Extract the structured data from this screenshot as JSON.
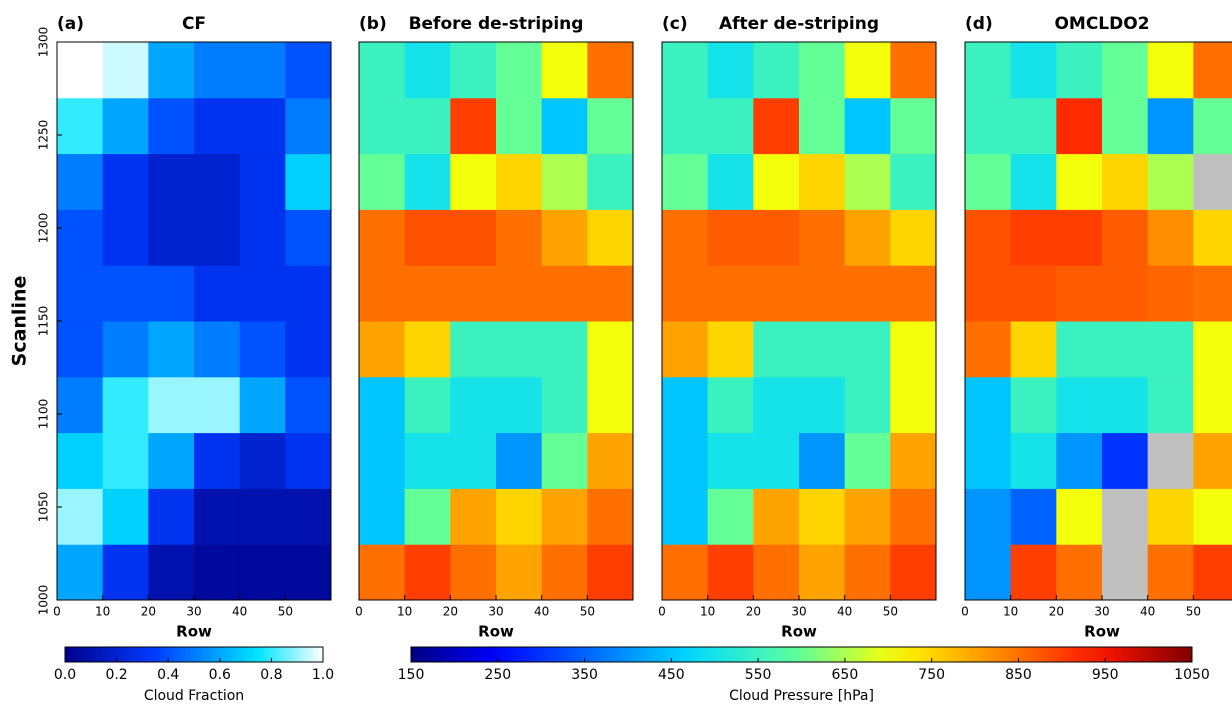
{
  "chart_data": [
    {
      "type": "heatmap",
      "panel_label": "(a)",
      "title": "CF",
      "xlabel": "Row",
      "ylabel": "Scanline",
      "xlim": [
        0,
        60
      ],
      "ylim": [
        1000,
        1300
      ],
      "xticks": [
        0,
        10,
        20,
        30,
        40,
        50
      ],
      "yticks": [
        1000,
        1050,
        1100,
        1150,
        1200,
        1250,
        1300
      ],
      "x_bins": [
        0,
        10,
        20,
        30,
        40,
        50,
        60
      ],
      "y_bins": [
        1000,
        1030,
        1060,
        1090,
        1120,
        1150,
        1180,
        1210,
        1240,
        1270,
        1300
      ],
      "values": [
        [
          0.6,
          0.3,
          0.1,
          0.05,
          0.05,
          0.05
        ],
        [
          0.9,
          0.7,
          0.3,
          0.1,
          0.1,
          0.1
        ],
        [
          0.7,
          0.8,
          0.6,
          0.3,
          0.2,
          0.3
        ],
        [
          0.5,
          0.8,
          0.9,
          0.9,
          0.6,
          0.4
        ],
        [
          0.4,
          0.5,
          0.6,
          0.5,
          0.4,
          0.3
        ],
        [
          0.4,
          0.4,
          0.4,
          0.3,
          0.3,
          0.3
        ],
        [
          0.4,
          0.3,
          0.2,
          0.2,
          0.3,
          0.4
        ],
        [
          0.5,
          0.3,
          0.2,
          0.2,
          0.3,
          0.7
        ],
        [
          0.8,
          0.6,
          0.4,
          0.3,
          0.3,
          0.5
        ],
        [
          1,
          0.95,
          0.6,
          0.5,
          0.5,
          0.4
        ]
      ]
    },
    {
      "type": "heatmap",
      "panel_label": "(b)",
      "title": "Before de-striping",
      "xlabel": "Row",
      "xlim": [
        0,
        60
      ],
      "ylim": [
        1000,
        1300
      ],
      "xticks": [
        0,
        10,
        20,
        30,
        40,
        50
      ],
      "x_bins": [
        0,
        10,
        20,
        30,
        40,
        50,
        60
      ],
      "y_bins": [
        1000,
        1030,
        1060,
        1090,
        1120,
        1150,
        1180,
        1210,
        1240,
        1270,
        1300
      ],
      "values": [
        [
          850,
          900,
          850,
          800,
          850,
          900
        ],
        [
          450,
          600,
          800,
          750,
          800,
          850
        ],
        [
          450,
          500,
          500,
          400,
          600,
          800
        ],
        [
          450,
          550,
          500,
          500,
          550,
          700
        ],
        [
          800,
          750,
          550,
          550,
          550,
          700
        ],
        [
          850,
          850,
          850,
          850,
          850,
          850
        ],
        [
          850,
          880,
          880,
          850,
          800,
          750
        ],
        [
          600,
          500,
          700,
          750,
          650,
          550
        ],
        [
          550,
          550,
          900,
          600,
          450,
          600
        ],
        [
          550,
          500,
          550,
          600,
          700,
          850
        ]
      ]
    },
    {
      "type": "heatmap",
      "panel_label": "(c)",
      "title": "After de-striping",
      "xlabel": "Row",
      "xlim": [
        0,
        60
      ],
      "ylim": [
        1000,
        1300
      ],
      "xticks": [
        0,
        10,
        20,
        30,
        40,
        50
      ],
      "x_bins": [
        0,
        10,
        20,
        30,
        40,
        50,
        60
      ],
      "y_bins": [
        1000,
        1030,
        1060,
        1090,
        1120,
        1150,
        1180,
        1210,
        1240,
        1270,
        1300
      ],
      "values": [
        [
          850,
          900,
          850,
          800,
          850,
          900
        ],
        [
          450,
          600,
          800,
          750,
          800,
          850
        ],
        [
          450,
          500,
          500,
          400,
          600,
          800
        ],
        [
          450,
          550,
          500,
          500,
          550,
          700
        ],
        [
          800,
          750,
          550,
          550,
          550,
          700
        ],
        [
          850,
          850,
          850,
          850,
          850,
          850
        ],
        [
          850,
          870,
          870,
          850,
          800,
          750
        ],
        [
          600,
          500,
          700,
          750,
          650,
          550
        ],
        [
          550,
          550,
          900,
          600,
          450,
          600
        ],
        [
          550,
          500,
          550,
          600,
          700,
          850
        ]
      ]
    },
    {
      "type": "heatmap",
      "panel_label": "(d)",
      "title": "OMCLDO2",
      "xlabel": "Row",
      "xlim": [
        0,
        60
      ],
      "ylim": [
        1000,
        1300
      ],
      "xticks": [
        0,
        10,
        20,
        30,
        40,
        50
      ],
      "x_bins": [
        0,
        10,
        20,
        30,
        40,
        50,
        60
      ],
      "y_bins": [
        1000,
        1030,
        1060,
        1090,
        1120,
        1150,
        1180,
        1210,
        1240,
        1270,
        1300
      ],
      "values": [
        [
          400,
          900,
          850,
          null,
          850,
          900
        ],
        [
          400,
          350,
          700,
          null,
          750,
          700
        ],
        [
          450,
          500,
          400,
          300,
          null,
          800
        ],
        [
          450,
          550,
          500,
          500,
          550,
          700
        ],
        [
          850,
          750,
          550,
          550,
          550,
          700
        ],
        [
          880,
          880,
          870,
          870,
          860,
          850
        ],
        [
          880,
          900,
          900,
          870,
          820,
          750
        ],
        [
          600,
          500,
          700,
          750,
          650,
          null
        ],
        [
          550,
          550,
          920,
          600,
          400,
          600
        ],
        [
          550,
          500,
          550,
          600,
          700,
          850
        ]
      ],
      "missing_color": "#c0c0c0"
    }
  ],
  "colorbars": [
    {
      "label": "Cloud Fraction",
      "cmap": "blues-white",
      "clim": [
        0,
        1
      ],
      "ticks": [
        {
          "value": 0,
          "label": "0.0"
        },
        {
          "value": 0.2,
          "label": "0.2"
        },
        {
          "value": 0.4,
          "label": "0.4"
        },
        {
          "value": 0.6,
          "label": "0.6"
        },
        {
          "value": 0.8,
          "label": "0.8"
        },
        {
          "value": 1,
          "label": "1.0"
        }
      ]
    },
    {
      "label": "Cloud Pressure [hPa]",
      "cmap": "jet",
      "clim": [
        150,
        1050
      ],
      "ticks": [
        150,
        250,
        350,
        450,
        550,
        650,
        750,
        850,
        950,
        1050
      ]
    }
  ]
}
